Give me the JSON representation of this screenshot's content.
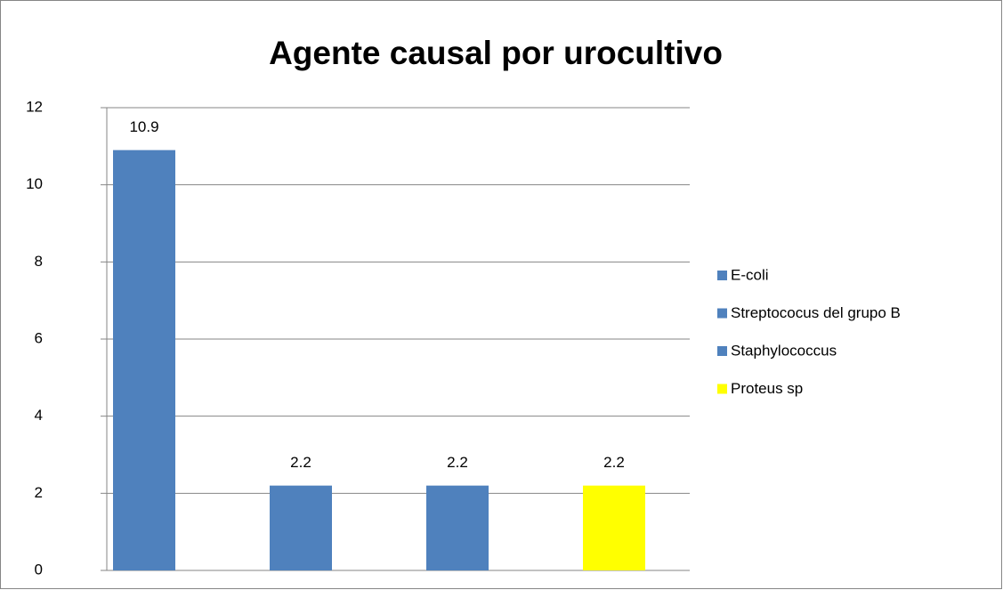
{
  "chart_data": {
    "type": "bar",
    "title": "Agente causal por urocultivo",
    "series": [
      {
        "name": "E-coli",
        "color": "#4f81bd",
        "values": [
          10.9
        ]
      },
      {
        "name": "Streptococus del grupo B",
        "color": "#4f81bd",
        "values": [
          2.2
        ]
      },
      {
        "name": "Staphylococcus",
        "color": "#4f81bd",
        "values": [
          2.2
        ]
      },
      {
        "name": "Proteus sp",
        "color": "#ffff00",
        "values": [
          2.2
        ]
      }
    ],
    "ylim": [
      0,
      12
    ],
    "yticks": [
      0,
      2,
      4,
      6,
      8,
      10,
      12
    ],
    "grid": true,
    "legend": "right"
  }
}
